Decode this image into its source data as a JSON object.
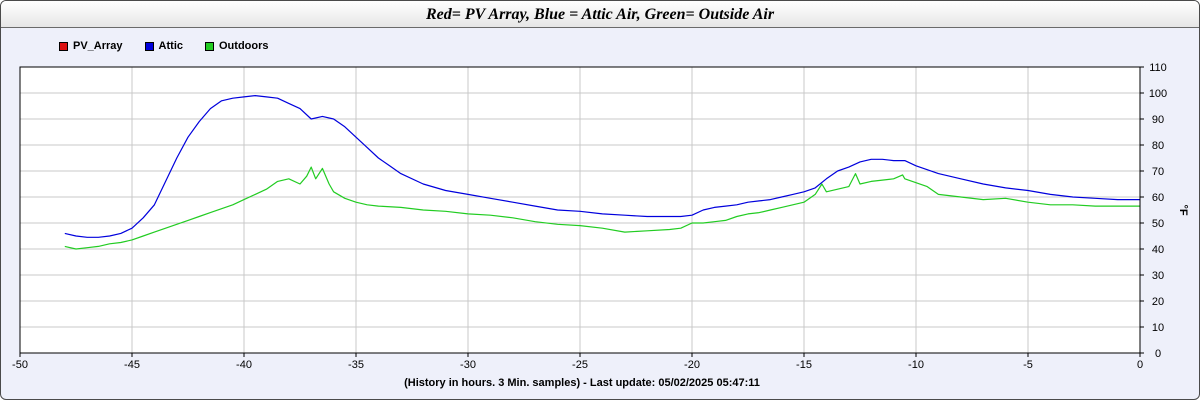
{
  "title": "Red= PV Array, Blue = Attic Air, Green= Outside Air",
  "legend": [
    {
      "label": "PV_Array",
      "color": "#dd1111"
    },
    {
      "label": "Attic",
      "color": "#0000dd"
    },
    {
      "label": "Outdoors",
      "color": "#22cc22"
    }
  ],
  "chart_data": {
    "type": "line",
    "xlabel": "(History in hours. 3 Min. samples) - Last update: 05/02/2025 05:47:11",
    "ylabel": "°F",
    "xlim": [
      -50,
      0
    ],
    "ylim": [
      0,
      110
    ],
    "x_ticks": [
      -50,
      -45,
      -40,
      -35,
      -30,
      -25,
      -20,
      -15,
      -10,
      -5,
      0
    ],
    "y_ticks": [
      0,
      10,
      20,
      30,
      40,
      50,
      60,
      70,
      80,
      90,
      100,
      110
    ],
    "grid": true,
    "y_axis_side": "right",
    "series": [
      {
        "name": "PV_Array",
        "color": "#dd1111",
        "x": [],
        "y": []
      },
      {
        "name": "Attic",
        "color": "#0000dd",
        "x": [
          -48,
          -47.5,
          -47,
          -46.5,
          -46,
          -45.5,
          -45,
          -44.5,
          -44,
          -43.5,
          -43,
          -42.5,
          -42,
          -41.5,
          -41,
          -40.5,
          -40,
          -39.5,
          -39,
          -38.5,
          -38,
          -37.5,
          -37,
          -36.5,
          -36,
          -35.5,
          -35,
          -34.5,
          -34,
          -33.5,
          -33,
          -32,
          -31,
          -30,
          -29,
          -28,
          -27,
          -26,
          -25,
          -24,
          -23,
          -22,
          -21,
          -20.5,
          -20,
          -19.5,
          -19,
          -18.5,
          -18,
          -17.5,
          -17,
          -16.5,
          -16,
          -15.5,
          -15,
          -14.5,
          -14,
          -13.5,
          -13,
          -12.5,
          -12,
          -11.5,
          -11,
          -10.5,
          -10,
          -9.5,
          -9,
          -8,
          -7,
          -6,
          -5,
          -4,
          -3,
          -2,
          -1,
          0
        ],
        "y": [
          46,
          45,
          44.5,
          44.5,
          45,
          46,
          48,
          52,
          57,
          66,
          75,
          83,
          89,
          94,
          97,
          98,
          98.5,
          99,
          98.5,
          98,
          96,
          94,
          90,
          91,
          90,
          87,
          83,
          79,
          75,
          72,
          69,
          65,
          62.5,
          61,
          59.5,
          58,
          56.5,
          55,
          54.5,
          53.5,
          53,
          52.5,
          52.5,
          52.5,
          53,
          55,
          56,
          56.5,
          57,
          58,
          58.5,
          59,
          60,
          61,
          62,
          63.5,
          67,
          70,
          71.5,
          73.5,
          74.5,
          74.5,
          74,
          74,
          72,
          70.5,
          69,
          67,
          65,
          63.5,
          62.5,
          61,
          60,
          59.5,
          59,
          59
        ]
      },
      {
        "name": "Outdoors",
        "color": "#22cc22",
        "x": [
          -48,
          -47.5,
          -47,
          -46.5,
          -46,
          -45.5,
          -45,
          -44.5,
          -44,
          -43.5,
          -43,
          -42.5,
          -42,
          -41.5,
          -41,
          -40.5,
          -40,
          -39.5,
          -39,
          -38.5,
          -38,
          -37.5,
          -37.2,
          -37,
          -36.8,
          -36.5,
          -36.2,
          -36,
          -35.5,
          -35,
          -34.5,
          -34,
          -33,
          -32,
          -31,
          -30,
          -29,
          -28,
          -27,
          -26,
          -25,
          -24,
          -23,
          -22,
          -21,
          -20.5,
          -20,
          -19.5,
          -19,
          -18.5,
          -18,
          -17.5,
          -17,
          -16.5,
          -16,
          -15.5,
          -15,
          -14.5,
          -14.2,
          -14,
          -13.5,
          -13,
          -12.7,
          -12.5,
          -12,
          -11.5,
          -11,
          -10.6,
          -10.5,
          -10,
          -9.5,
          -9,
          -8,
          -7,
          -6,
          -5,
          -4,
          -3,
          -2,
          -1,
          0
        ],
        "y": [
          41,
          40,
          40.5,
          41,
          42,
          42.5,
          43.5,
          45,
          46.5,
          48,
          49.5,
          51,
          52.5,
          54,
          55.5,
          57,
          59,
          61,
          63,
          66,
          67,
          65,
          68,
          71.5,
          67,
          71,
          65,
          62,
          59.5,
          58,
          57,
          56.5,
          56,
          55,
          54.5,
          53.5,
          53,
          52,
          50.5,
          49.5,
          49,
          48,
          46.5,
          47,
          47.5,
          48,
          50,
          50,
          50.5,
          51,
          52.5,
          53.5,
          54,
          55,
          56,
          57,
          58,
          61,
          65,
          62,
          63,
          64,
          69,
          65,
          66,
          66.5,
          67,
          68.5,
          67,
          65.5,
          64,
          61,
          60,
          59,
          59.5,
          58,
          57,
          57,
          56.5,
          56.5,
          56.5
        ]
      }
    ]
  }
}
